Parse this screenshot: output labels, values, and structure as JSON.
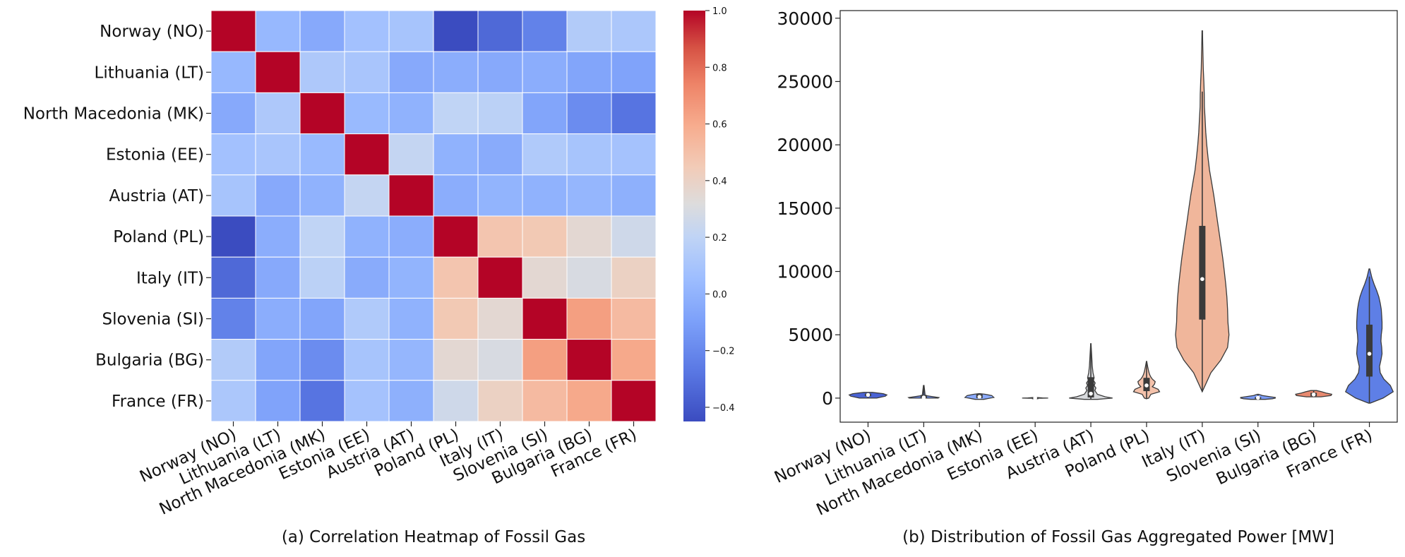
{
  "countries": [
    "Norway (NO)",
    "Lithuania (LT)",
    "North Macedonia (MK)",
    "Estonia (EE)",
    "Austria (AT)",
    "Poland (PL)",
    "Italy (IT)",
    "Slovenia (SI)",
    "Bulgaria (BG)",
    "France (FR)"
  ],
  "captions": {
    "a": "(a) Correlation Heatmap of Fossil Gas",
    "b": "(b) Distribution of Fossil Gas Aggregated Power [MW]"
  },
  "colors": {
    "colormap": "coolwarm",
    "cmap_low": "#3b4cc0",
    "cmap_mid": "#dddddd",
    "cmap_high": "#b40426",
    "box": "#3a3a3a"
  },
  "chart_data": [
    {
      "type": "heatmap",
      "title": "",
      "x_categories": [
        "Norway (NO)",
        "Lithuania (LT)",
        "North Macedonia (MK)",
        "Estonia (EE)",
        "Austria (AT)",
        "Poland (PL)",
        "Italy (IT)",
        "Slovenia (SI)",
        "Bulgaria (BG)",
        "France (FR)"
      ],
      "y_categories": [
        "Norway (NO)",
        "Lithuania (LT)",
        "North Macedonia (MK)",
        "Estonia (EE)",
        "Austria (AT)",
        "Poland (PL)",
        "Italy (IT)",
        "Slovenia (SI)",
        "Bulgaria (BG)",
        "France (FR)"
      ],
      "values": [
        [
          1.0,
          -0.03,
          -0.1,
          0.02,
          0.04,
          -0.45,
          -0.35,
          -0.26,
          0.09,
          0.06
        ],
        [
          -0.03,
          1.0,
          0.07,
          0.05,
          -0.1,
          -0.08,
          -0.1,
          -0.08,
          -0.12,
          -0.13
        ],
        [
          -0.1,
          0.07,
          1.0,
          -0.02,
          -0.06,
          0.15,
          0.13,
          -0.12,
          -0.22,
          -0.31
        ],
        [
          0.02,
          0.05,
          -0.02,
          1.0,
          0.17,
          -0.06,
          -0.09,
          0.08,
          0.04,
          0.03
        ],
        [
          0.04,
          -0.1,
          -0.06,
          0.17,
          1.0,
          -0.08,
          -0.05,
          -0.06,
          -0.04,
          -0.07
        ],
        [
          -0.45,
          -0.08,
          0.15,
          -0.06,
          -0.08,
          1.0,
          0.48,
          0.46,
          0.34,
          0.22
        ],
        [
          -0.35,
          -0.1,
          0.13,
          -0.09,
          -0.05,
          0.48,
          1.0,
          0.34,
          0.27,
          0.4
        ],
        [
          -0.26,
          -0.08,
          -0.12,
          0.08,
          -0.06,
          0.46,
          0.34,
          1.0,
          0.65,
          0.53
        ],
        [
          0.09,
          -0.12,
          -0.22,
          0.04,
          -0.04,
          0.34,
          0.27,
          0.65,
          1.0,
          0.61
        ],
        [
          0.06,
          -0.13,
          -0.31,
          0.03,
          -0.07,
          0.22,
          0.4,
          0.53,
          0.61,
          1.0
        ]
      ],
      "colorbar": {
        "vmin": -0.45,
        "vmax": 1.0,
        "ticks": [
          -0.4,
          -0.2,
          0.0,
          0.2,
          0.4,
          0.6,
          0.8,
          1.0
        ]
      }
    },
    {
      "type": "violin",
      "title": "",
      "xlabel": "",
      "ylabel": "",
      "ylim": [
        -1900,
        30600
      ],
      "yticks": [
        0,
        5000,
        10000,
        15000,
        20000,
        25000,
        30000
      ],
      "series": [
        {
          "name": "Norway (NO)",
          "color": "#4a63d4",
          "profile": [
            [
              0,
              120
            ],
            [
              150,
              240
            ],
            [
              250,
              260
            ],
            [
              350,
              210
            ],
            [
              450,
              60
            ]
          ],
          "q1": 150,
          "median": 250,
          "q3": 350,
          "whisker": [
            0,
            450
          ]
        },
        {
          "name": "Lithuania (LT)",
          "color": "#6f8ef0",
          "profile": [
            [
              0,
              200
            ],
            [
              40,
              210
            ],
            [
              200,
              20
            ],
            [
              1000,
              4
            ]
          ],
          "q1": 10,
          "median": 50,
          "q3": 250,
          "whisker": [
            0,
            1000
          ]
        },
        {
          "name": "North Macedonia (MK)",
          "color": "#8aaafc",
          "profile": [
            [
              -100,
              60
            ],
            [
              0,
              150
            ],
            [
              50,
              200
            ],
            [
              200,
              170
            ],
            [
              300,
              80
            ],
            [
              350,
              10
            ]
          ],
          "q1": 0,
          "median": 100,
          "q3": 300,
          "whisker": [
            -100,
            350
          ]
        },
        {
          "name": "Estonia (EE)",
          "color": "#b2cbfc",
          "profile": [
            [
              -10,
              80
            ],
            [
              0,
              180
            ],
            [
              20,
              100
            ],
            [
              50,
              20
            ]
          ],
          "q1": 0,
          "median": 10,
          "q3": 25,
          "whisker": [
            -10,
            50
          ]
        },
        {
          "name": "Austria (AT)",
          "color": "#d8dadd",
          "profile": [
            [
              -100,
              90
            ],
            [
              0,
              300
            ],
            [
              100,
              200
            ],
            [
              300,
              90
            ],
            [
              600,
              55
            ],
            [
              800,
              70
            ],
            [
              1000,
              45
            ],
            [
              1200,
              60
            ],
            [
              1400,
              35
            ],
            [
              1600,
              45
            ],
            [
              2000,
              30
            ],
            [
              2500,
              20
            ],
            [
              3000,
              15
            ],
            [
              3500,
              10
            ],
            [
              4300,
              2
            ]
          ],
          "q1": 50,
          "median": 350,
          "q3": 1650,
          "whisker": [
            -100,
            4300
          ]
        },
        {
          "name": "Poland (PL)",
          "color": "#f4c2ab",
          "profile": [
            [
              -50,
              2
            ],
            [
              0,
              30
            ],
            [
              300,
              60
            ],
            [
              500,
              180
            ],
            [
              700,
              160
            ],
            [
              900,
              80
            ],
            [
              1100,
              110
            ],
            [
              1300,
              120
            ],
            [
              1500,
              80
            ],
            [
              1700,
              55
            ],
            [
              1900,
              40
            ],
            [
              2100,
              30
            ],
            [
              2500,
              15
            ],
            [
              2900,
              2
            ]
          ],
          "q1": 550,
          "median": 1000,
          "q3": 1600,
          "whisker": [
            -50,
            2900
          ]
        },
        {
          "name": "Italy (IT)",
          "color": "#f0b69b",
          "profile": [
            [
              500,
              0
            ],
            [
              1000,
              40
            ],
            [
              2000,
              120
            ],
            [
              3000,
              255
            ],
            [
              4000,
              350
            ],
            [
              5000,
              370
            ],
            [
              6000,
              355
            ],
            [
              7000,
              350
            ],
            [
              8000,
              340
            ],
            [
              9000,
              325
            ],
            [
              10000,
              305
            ],
            [
              11000,
              285
            ],
            [
              12000,
              260
            ],
            [
              13000,
              235
            ],
            [
              14000,
              210
            ],
            [
              15000,
              185
            ],
            [
              16000,
              160
            ],
            [
              17000,
              130
            ],
            [
              18000,
              100
            ],
            [
              19000,
              80
            ],
            [
              20000,
              62
            ],
            [
              21000,
              48
            ],
            [
              22000,
              40
            ],
            [
              23000,
              30
            ],
            [
              24000,
              28
            ],
            [
              25000,
              22
            ],
            [
              26000,
              14
            ],
            [
              27000,
              10
            ],
            [
              28000,
              6
            ],
            [
              29000,
              3
            ]
          ],
          "q1": 6200,
          "median": 9400,
          "q3": 13600,
          "whisker": [
            500,
            24200
          ]
        },
        {
          "name": "Slovenia (SI)",
          "color": "#7b9bf5",
          "profile": [
            [
              -100,
              100
            ],
            [
              -50,
              200
            ],
            [
              0,
              240
            ],
            [
              50,
              240
            ],
            [
              100,
              180
            ],
            [
              200,
              60
            ],
            [
              300,
              10
            ]
          ],
          "q1": -50,
          "median": 30,
          "q3": 80,
          "whisker": [
            -100,
            300
          ]
        },
        {
          "name": "Bulgaria (BG)",
          "color": "#e88a70",
          "profile": [
            [
              100,
              100
            ],
            [
              200,
              240
            ],
            [
              300,
              250
            ],
            [
              400,
              170
            ],
            [
              500,
              110
            ],
            [
              600,
              40
            ]
          ],
          "q1": 150,
          "median": 280,
          "q3": 420,
          "whisker": [
            100,
            600
          ]
        },
        {
          "name": "France (FR)",
          "color": "#5e7fe6",
          "profile": [
            [
              -400,
              10
            ],
            [
              0,
              190
            ],
            [
              500,
              330
            ],
            [
              1000,
              290
            ],
            [
              1500,
              200
            ],
            [
              2000,
              150
            ],
            [
              2500,
              140
            ],
            [
              3000,
              160
            ],
            [
              3500,
              175
            ],
            [
              4000,
              170
            ],
            [
              4500,
              160
            ],
            [
              5000,
              165
            ],
            [
              5500,
              175
            ],
            [
              6000,
              175
            ],
            [
              6500,
              170
            ],
            [
              7000,
              165
            ],
            [
              7500,
              150
            ],
            [
              8000,
              130
            ],
            [
              8500,
              100
            ],
            [
              9000,
              65
            ],
            [
              9500,
              35
            ],
            [
              10200,
              5
            ]
          ],
          "q1": 1700,
          "median": 3500,
          "q3": 5800,
          "whisker": [
            -400,
            9600
          ]
        }
      ]
    }
  ]
}
